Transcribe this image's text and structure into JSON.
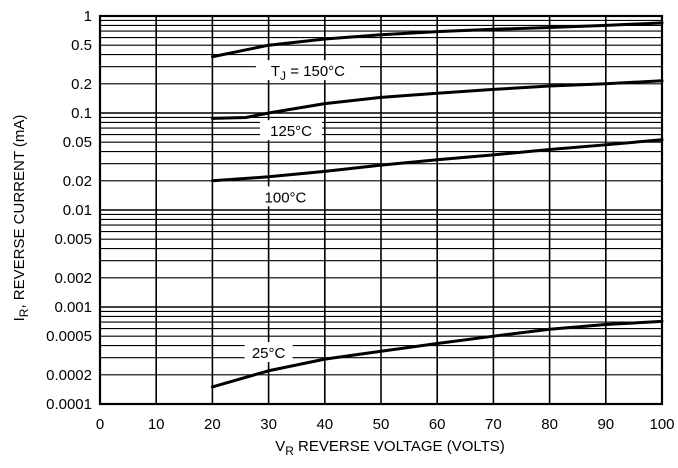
{
  "chart_data": {
    "type": "line",
    "title": "",
    "xlabel": "V",
    "xlabel_sub": "R",
    "xlabel_rest": " REVERSE VOLTAGE (VOLTS)",
    "ylabel_prefix": "I",
    "ylabel_sub": "R",
    "ylabel_rest": ", REVERSE CURRENT (mA)",
    "xlim": [
      0,
      100
    ],
    "ylim": [
      0.0001,
      1
    ],
    "yscale": "log",
    "grid": true,
    "x_ticks": [
      "0",
      "10",
      "20",
      "30",
      "40",
      "50",
      "60",
      "70",
      "80",
      "90",
      "100"
    ],
    "y_ticks": [
      {
        "value": 1,
        "label": "1"
      },
      {
        "value": 0.5,
        "label": "0.5"
      },
      {
        "value": 0.2,
        "label": "0.2"
      },
      {
        "value": 0.1,
        "label": "0.1"
      },
      {
        "value": 0.05,
        "label": "0.05"
      },
      {
        "value": 0.02,
        "label": "0.02"
      },
      {
        "value": 0.01,
        "label": "0.01"
      },
      {
        "value": 0.005,
        "label": "0.005"
      },
      {
        "value": 0.002,
        "label": "0.002"
      },
      {
        "value": 0.001,
        "label": "0.001"
      },
      {
        "value": 0.0005,
        "label": "0.0005"
      },
      {
        "value": 0.0002,
        "label": "0.0002"
      },
      {
        "value": 0.0001,
        "label": "0.0001"
      }
    ],
    "series": [
      {
        "name": "T_J = 150°C",
        "label_parts": [
          "T",
          "J",
          " = 150°C"
        ],
        "x": [
          20,
          30,
          40,
          50,
          60,
          70,
          80,
          90,
          100
        ],
        "y": [
          0.38,
          0.5,
          0.58,
          0.64,
          0.69,
          0.73,
          0.76,
          0.8,
          0.85
        ]
      },
      {
        "name": "125°C",
        "label_parts": [
          "125°C"
        ],
        "x": [
          20,
          26,
          30,
          40,
          50,
          60,
          70,
          80,
          90,
          100
        ],
        "y": [
          0.088,
          0.09,
          0.1,
          0.125,
          0.145,
          0.16,
          0.175,
          0.19,
          0.2,
          0.215
        ]
      },
      {
        "name": "100°C",
        "label_parts": [
          "100°C"
        ],
        "x": [
          20,
          30,
          40,
          50,
          60,
          70,
          80,
          90,
          100
        ],
        "y": [
          0.02,
          0.022,
          0.025,
          0.029,
          0.033,
          0.037,
          0.042,
          0.047,
          0.053
        ]
      },
      {
        "name": "25°C",
        "label_parts": [
          "25°C"
        ],
        "x": [
          20,
          30,
          40,
          50,
          60,
          70,
          80,
          90,
          100
        ],
        "y": [
          0.00015,
          0.00022,
          0.00029,
          0.00035,
          0.00042,
          0.0005,
          0.00059,
          0.00066,
          0.00071
        ]
      }
    ]
  }
}
